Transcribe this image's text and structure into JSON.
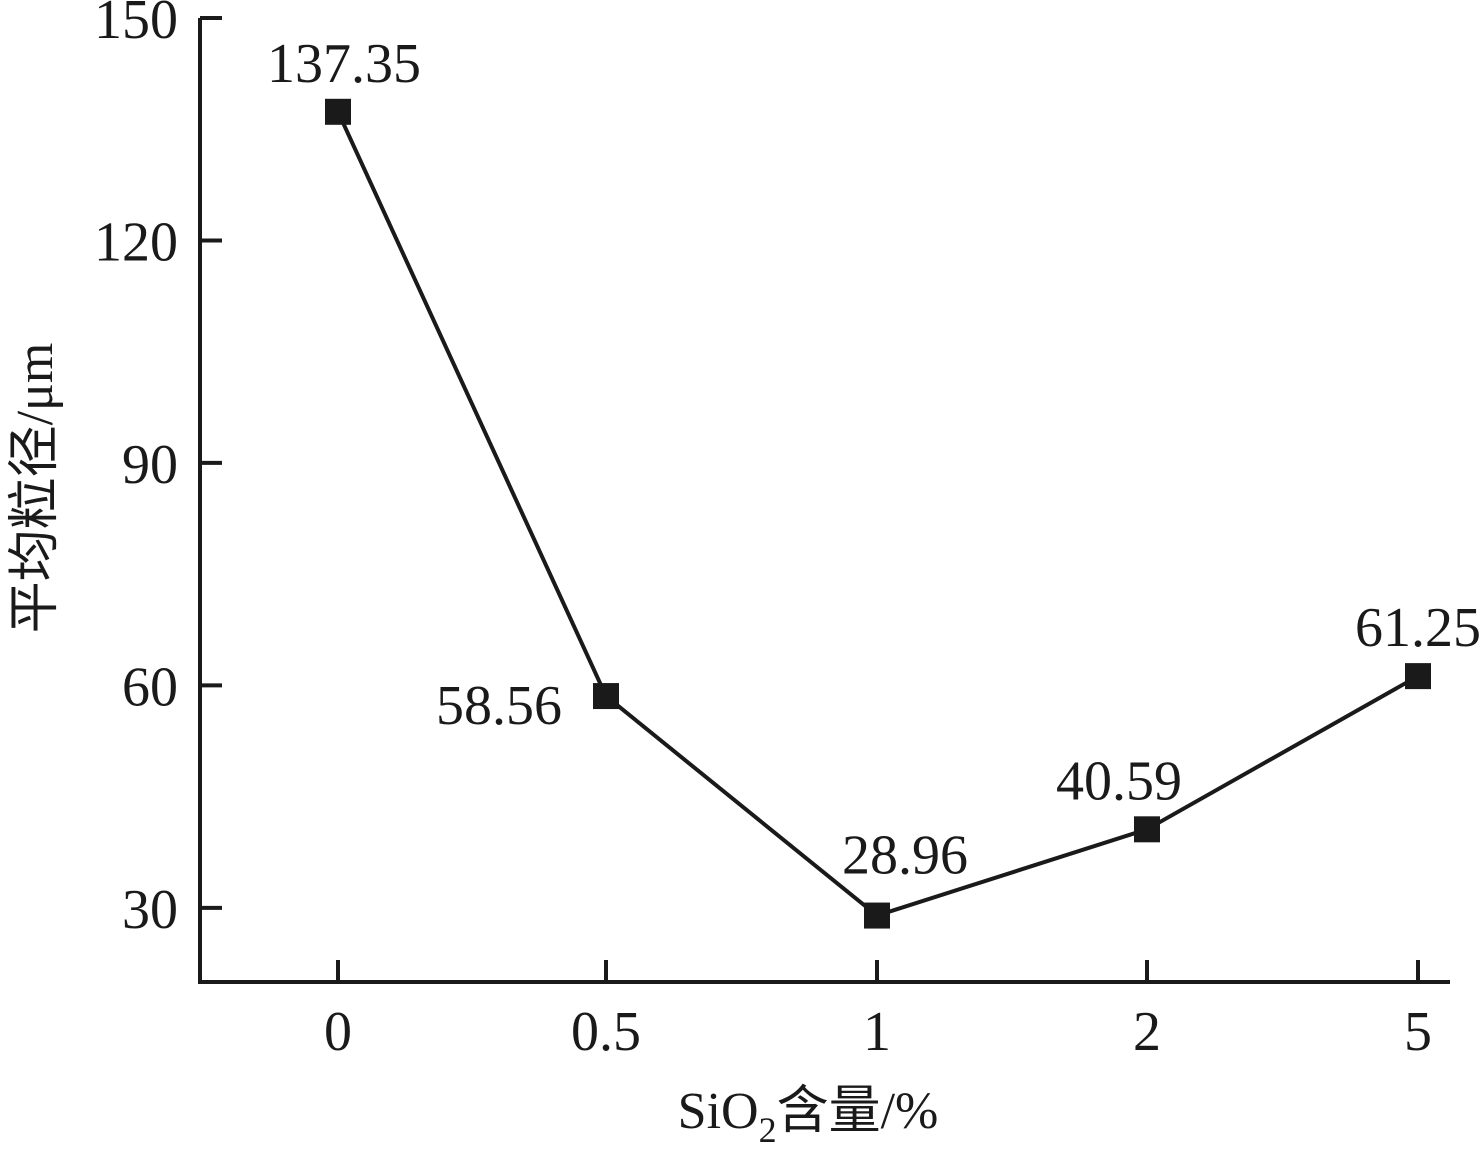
{
  "chart_data": {
    "type": "line",
    "categories": [
      "0",
      "0.5",
      "1",
      "2",
      "5"
    ],
    "series": [
      {
        "values": [
          137.35,
          58.56,
          28.96,
          40.59,
          61.25
        ],
        "data_labels": [
          "137.35",
          "58.56",
          "28.96",
          "40.59",
          "61.25"
        ],
        "marker": "square"
      }
    ],
    "xlabel": {
      "prefix": "SiO",
      "subscript": "2",
      "suffix": "含量/%"
    },
    "ylabel": "平均粒径/μm",
    "y_ticks": [
      "30",
      "60",
      "90",
      "120",
      "150"
    ],
    "ylim": [
      20,
      150
    ],
    "grid": false,
    "legend": "none",
    "colors": {
      "line": "#1a1a1a",
      "marker": "#1a1a1a",
      "axis": "#1a1a1a",
      "text": "#1a1a1a",
      "background": "#ffffff"
    }
  }
}
